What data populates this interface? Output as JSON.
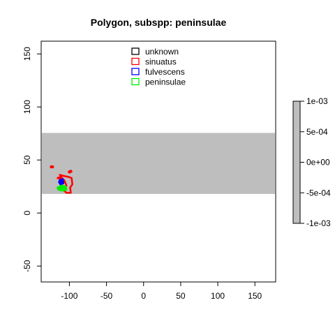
{
  "chart_data": {
    "type": "map",
    "title": "Polygon, subspp: peninsulae",
    "xlabel": "",
    "ylabel": "",
    "xlim": [
      -138,
      178
    ],
    "ylim": [
      -65,
      162
    ],
    "x_ticks": [
      -100,
      -50,
      0,
      50,
      100,
      150
    ],
    "x_tick_labels": [
      "-100",
      "-50",
      "0",
      "50",
      "100",
      "150"
    ],
    "y_ticks": [
      -50,
      0,
      50,
      100,
      150
    ],
    "y_tick_labels": [
      "-50",
      "0",
      "50",
      "100",
      "150"
    ],
    "grid": false,
    "legend_placement": "top-center",
    "raster_band": {
      "lat_min": 18,
      "lat_max": 75.5,
      "color": "#bebebe"
    },
    "series": [
      {
        "name": "unknown",
        "color": "#000000",
        "polygons": []
      },
      {
        "name": "sinuatus",
        "color": "#ff0000",
        "polygons": [
          [
            [
              -101,
              34
            ],
            [
              -97,
              33
            ],
            [
              -96,
              27
            ],
            [
              -99,
              24
            ],
            [
              -98,
              19
            ],
            [
              -104,
              19
            ],
            [
              -107,
              21
            ],
            [
              -104,
              26
            ],
            [
              -107,
              31
            ],
            [
              -110,
              33
            ],
            [
              -113,
              36
            ],
            [
              -108,
              35
            ]
          ],
          [
            [
              -116,
              33
            ],
            [
              -111,
              32
            ],
            [
              -112,
              34
            ]
          ],
          [
            [
              -100,
              38
            ],
            [
              -97,
              39
            ],
            [
              -98,
              40
            ],
            [
              -101,
              39
            ]
          ],
          [
            [
              -125,
              43
            ],
            [
              -122,
              43
            ],
            [
              -122,
              44
            ],
            [
              -125,
              44
            ]
          ]
        ]
      },
      {
        "name": "fulvescens",
        "color": "#0000ff",
        "polygons": [
          [
            [
              -113,
              31
            ],
            [
              -109,
              32
            ],
            [
              -108,
              28
            ],
            [
              -112,
              27
            ],
            [
              -114,
              29
            ]
          ]
        ]
      },
      {
        "name": "peninsulae",
        "color": "#00ee00",
        "polygons": [
          [
            [
              -116,
              24
            ],
            [
              -110,
              26
            ],
            [
              -105,
              25
            ],
            [
              -104,
              22
            ],
            [
              -109,
              21
            ],
            [
              -115,
              22
            ]
          ]
        ]
      }
    ]
  },
  "colorbar": {
    "tick_labels": [
      "1e-03",
      "5e-04",
      "0e+00",
      "-5e-04",
      "-1e-03"
    ],
    "tick_values": [
      0.001,
      0.0005,
      0,
      -0.0005,
      -0.001
    ],
    "range": [
      -0.001,
      0.001
    ],
    "color": "#bebebe"
  }
}
